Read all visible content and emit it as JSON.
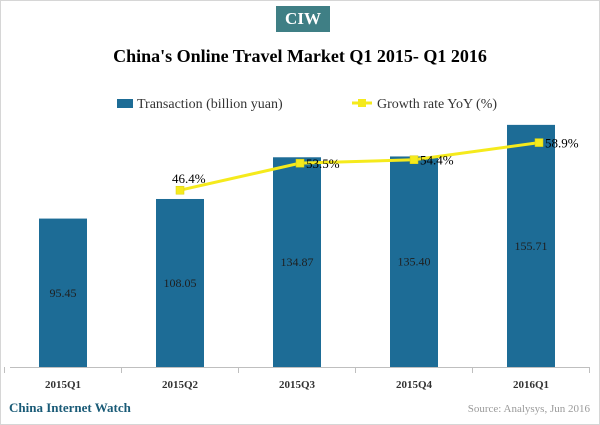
{
  "header": {
    "badge": "CIW",
    "title": "China's Online Travel Market Q1 2015- Q1 2016"
  },
  "footer": {
    "brand": "China Internet Watch",
    "source": "Source: Analysys, Jun 2016"
  },
  "colors": {
    "bar": "#1d6c96",
    "line": "#f5ea1c",
    "badge": "#3f7f85",
    "brand": "#1a5b77"
  },
  "chart_data": {
    "type": "bar",
    "categories": [
      "2015Q1",
      "2015Q2",
      "2015Q3",
      "2015Q4",
      "2016Q1"
    ],
    "legend_position": "top",
    "grid": false,
    "ylim": [
      0,
      160
    ],
    "series": [
      {
        "name": "Transaction (billion yuan)",
        "type": "bar",
        "values": [
          95.45,
          108.05,
          134.87,
          135.4,
          155.71
        ],
        "labels": [
          "95.45",
          "108.05",
          "134.87",
          "135.40",
          "155.71"
        ]
      },
      {
        "name": "Growth rate YoY (%)",
        "type": "line",
        "values": [
          null,
          46.4,
          53.5,
          54.4,
          58.9
        ],
        "labels": [
          "",
          "46.4%",
          "53.5%",
          "54.4%",
          "58.9%"
        ],
        "ylim": [
          0,
          95
        ]
      }
    ]
  }
}
